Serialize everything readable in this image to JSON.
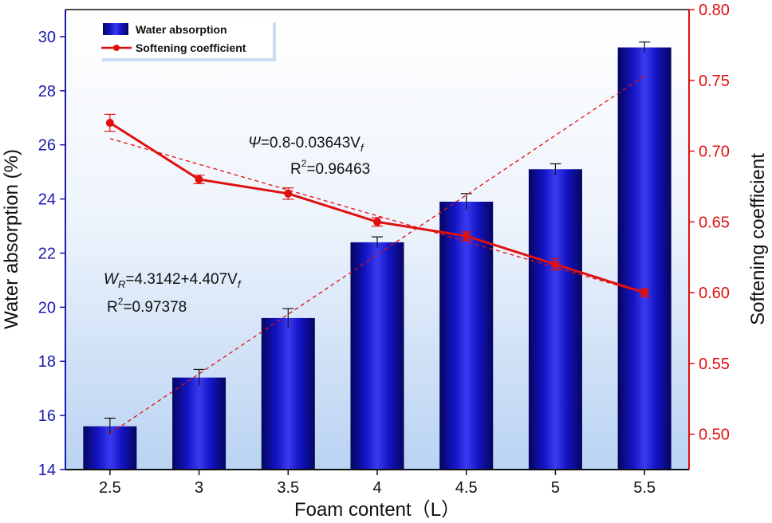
{
  "chart_data": {
    "type": "bar+line",
    "categories": [
      "2.5",
      "3",
      "3.5",
      "4",
      "4.5",
      "5",
      "5.5"
    ],
    "x_values": [
      2.5,
      3,
      3.5,
      4,
      4.5,
      5,
      5.5
    ],
    "xlabel": "Foam content（L）",
    "ylabel_left": "Water absorption (%)",
    "ylabel_right": "Softening coefficient",
    "ylim_left": [
      14,
      31
    ],
    "ylim_right": [
      0.475,
      0.8
    ],
    "yticks_left": [
      "14",
      "16",
      "18",
      "20",
      "22",
      "24",
      "26",
      "28",
      "30"
    ],
    "yticks_right": [
      "0.50",
      "0.55",
      "0.60",
      "0.65",
      "0.70",
      "0.75",
      "0.80"
    ],
    "series": [
      {
        "name": "Water absorption",
        "type": "bar",
        "axis": "left",
        "color": "#1010c8",
        "values": [
          15.6,
          17.4,
          19.6,
          22.4,
          23.9,
          25.1,
          29.6
        ],
        "errors": [
          0.3,
          0.3,
          0.35,
          0.2,
          0.3,
          0.2,
          0.2
        ]
      },
      {
        "name": "Softening coefficient",
        "type": "line",
        "axis": "right",
        "color": "#e01010",
        "values": [
          0.72,
          0.68,
          0.67,
          0.65,
          0.64,
          0.62,
          0.6
        ],
        "errors": [
          0.006,
          0.003,
          0.004,
          0.003,
          0.003,
          0.004,
          0.003
        ]
      }
    ],
    "fits": [
      {
        "axis": "left",
        "intercept": 4.3142,
        "slope": 4.407,
        "x_range": [
          2.5,
          5.5
        ],
        "eq_prefix": "W",
        "eq_subscript": "R",
        "eq_body": "=4.3142+4.407V",
        "eq_var_sub": "f",
        "r2_label": "R",
        "r2_value": "=0.97378"
      },
      {
        "axis": "right",
        "intercept": 0.8,
        "slope": -0.03643,
        "x_range": [
          2.5,
          5.5
        ],
        "eq_prefix": "Ψ",
        "eq_body": "=0.8-0.03643V",
        "eq_var_sub": "f",
        "r2_label": "R",
        "r2_value": "=0.96463"
      }
    ],
    "legend": {
      "position": "top-left",
      "items": [
        "Water absorption",
        "Softening coefficient"
      ]
    }
  }
}
